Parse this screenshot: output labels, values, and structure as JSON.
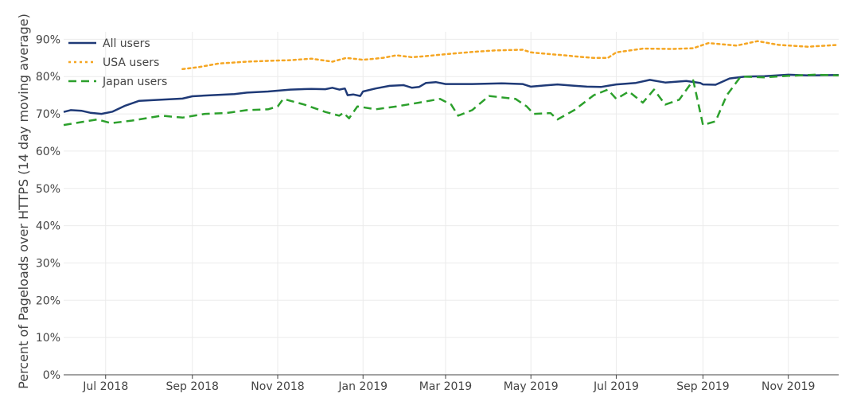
{
  "chart_data": {
    "type": "line",
    "title": "",
    "xlabel": "",
    "ylabel": "Percent of Pageloads over HTTPS (14 day moving average)",
    "x_ticks": [
      {
        "label": "Jul 2018",
        "date": "2018-07-01"
      },
      {
        "label": "Sep 2018",
        "date": "2018-09-01"
      },
      {
        "label": "Nov 2018",
        "date": "2018-11-01"
      },
      {
        "label": "Jan 2019",
        "date": "2019-01-01"
      },
      {
        "label": "Mar 2019",
        "date": "2019-03-01"
      },
      {
        "label": "May 2019",
        "date": "2019-05-01"
      },
      {
        "label": "Jul 2019",
        "date": "2019-07-01"
      },
      {
        "label": "Sep 2019",
        "date": "2019-09-01"
      },
      {
        "label": "Nov 2019",
        "date": "2019-11-01"
      }
    ],
    "xlim": [
      "2018-06-01",
      "2019-12-07"
    ],
    "y_ticks": [
      "0%",
      "10%",
      "20%",
      "30%",
      "40%",
      "50%",
      "60%",
      "70%",
      "80%",
      "90%"
    ],
    "ylim": [
      0,
      92
    ],
    "grid": true,
    "legend_position": "top-left",
    "series": [
      {
        "name": "All users",
        "color": "#1f3a77",
        "style": "solid",
        "points": [
          [
            "2018-06-01",
            70.5
          ],
          [
            "2018-06-06",
            71.0
          ],
          [
            "2018-06-14",
            70.8
          ],
          [
            "2018-06-20",
            70.3
          ],
          [
            "2018-06-28",
            70.0
          ],
          [
            "2018-07-06",
            70.6
          ],
          [
            "2018-07-15",
            72.2
          ],
          [
            "2018-07-25",
            73.5
          ],
          [
            "2018-08-10",
            73.8
          ],
          [
            "2018-08-25",
            74.1
          ],
          [
            "2018-09-01",
            74.7
          ],
          [
            "2018-09-15",
            75.0
          ],
          [
            "2018-10-01",
            75.3
          ],
          [
            "2018-10-10",
            75.7
          ],
          [
            "2018-10-25",
            76.0
          ],
          [
            "2018-11-10",
            76.5
          ],
          [
            "2018-11-25",
            76.7
          ],
          [
            "2018-12-05",
            76.6
          ],
          [
            "2018-12-10",
            77.0
          ],
          [
            "2018-12-15",
            76.5
          ],
          [
            "2018-12-19",
            76.8
          ],
          [
            "2018-12-21",
            75.0
          ],
          [
            "2018-12-25",
            75.2
          ],
          [
            "2018-12-30",
            74.8
          ],
          [
            "2019-01-01",
            76.0
          ],
          [
            "2019-01-10",
            76.8
          ],
          [
            "2019-01-20",
            77.5
          ],
          [
            "2019-01-30",
            77.7
          ],
          [
            "2019-02-05",
            77.0
          ],
          [
            "2019-02-10",
            77.2
          ],
          [
            "2019-02-15",
            78.3
          ],
          [
            "2019-02-22",
            78.5
          ],
          [
            "2019-03-01",
            78.0
          ],
          [
            "2019-03-20",
            78.0
          ],
          [
            "2019-04-10",
            78.2
          ],
          [
            "2019-04-25",
            78.0
          ],
          [
            "2019-05-01",
            77.3
          ],
          [
            "2019-05-10",
            77.6
          ],
          [
            "2019-05-20",
            77.9
          ],
          [
            "2019-05-30",
            77.6
          ],
          [
            "2019-06-10",
            77.3
          ],
          [
            "2019-06-20",
            77.2
          ],
          [
            "2019-07-01",
            77.9
          ],
          [
            "2019-07-15",
            78.3
          ],
          [
            "2019-07-25",
            79.1
          ],
          [
            "2019-08-05",
            78.4
          ],
          [
            "2019-08-20",
            78.8
          ],
          [
            "2019-08-30",
            78.3
          ],
          [
            "2019-09-01",
            77.9
          ],
          [
            "2019-09-10",
            77.8
          ],
          [
            "2019-09-20",
            79.5
          ],
          [
            "2019-10-01",
            80.0
          ],
          [
            "2019-10-15",
            80.1
          ],
          [
            "2019-11-01",
            80.5
          ],
          [
            "2019-11-15",
            80.3
          ],
          [
            "2019-12-07",
            80.4
          ]
        ]
      },
      {
        "name": "USA users",
        "color": "#f5a623",
        "style": "dotted",
        "points": [
          [
            "2018-08-25",
            82.0
          ],
          [
            "2018-09-05",
            82.5
          ],
          [
            "2018-09-20",
            83.5
          ],
          [
            "2018-10-10",
            84.0
          ],
          [
            "2018-10-25",
            84.2
          ],
          [
            "2018-11-10",
            84.4
          ],
          [
            "2018-11-25",
            84.8
          ],
          [
            "2018-12-10",
            84.0
          ],
          [
            "2018-12-20",
            85.0
          ],
          [
            "2019-01-01",
            84.5
          ],
          [
            "2019-01-15",
            85.0
          ],
          [
            "2019-01-25",
            85.7
          ],
          [
            "2019-02-05",
            85.2
          ],
          [
            "2019-02-15",
            85.5
          ],
          [
            "2019-03-01",
            86.0
          ],
          [
            "2019-03-20",
            86.6
          ],
          [
            "2019-04-05",
            87.0
          ],
          [
            "2019-04-25",
            87.2
          ],
          [
            "2019-05-01",
            86.5
          ],
          [
            "2019-05-15",
            86.0
          ],
          [
            "2019-05-25",
            85.7
          ],
          [
            "2019-06-05",
            85.3
          ],
          [
            "2019-06-15",
            85.0
          ],
          [
            "2019-06-25",
            85.0
          ],
          [
            "2019-07-01",
            86.5
          ],
          [
            "2019-07-20",
            87.5
          ],
          [
            "2019-08-10",
            87.4
          ],
          [
            "2019-08-25",
            87.6
          ],
          [
            "2019-09-05",
            89.0
          ],
          [
            "2019-09-25",
            88.3
          ],
          [
            "2019-10-10",
            89.5
          ],
          [
            "2019-10-25",
            88.5
          ],
          [
            "2019-11-15",
            88.0
          ],
          [
            "2019-12-07",
            88.5
          ]
        ]
      },
      {
        "name": "Japan users",
        "color": "#2ca02c",
        "style": "dashed",
        "points": [
          [
            "2018-06-01",
            67.0
          ],
          [
            "2018-06-25",
            68.5
          ],
          [
            "2018-07-05",
            67.5
          ],
          [
            "2018-07-20",
            68.2
          ],
          [
            "2018-08-10",
            69.5
          ],
          [
            "2018-08-25",
            69.0
          ],
          [
            "2018-09-10",
            70.0
          ],
          [
            "2018-09-25",
            70.2
          ],
          [
            "2018-10-10",
            71.0
          ],
          [
            "2018-10-25",
            71.2
          ],
          [
            "2018-11-01",
            72.0
          ],
          [
            "2018-11-05",
            74.0
          ],
          [
            "2018-11-20",
            72.5
          ],
          [
            "2018-12-05",
            70.5
          ],
          [
            "2018-12-15",
            69.5
          ],
          [
            "2018-12-18",
            70.3
          ],
          [
            "2018-12-22",
            68.8
          ],
          [
            "2018-12-28",
            72.0
          ],
          [
            "2019-01-10",
            71.2
          ],
          [
            "2019-01-25",
            72.0
          ],
          [
            "2019-02-10",
            73.0
          ],
          [
            "2019-02-25",
            74.0
          ],
          [
            "2019-03-05",
            72.5
          ],
          [
            "2019-03-10",
            69.5
          ],
          [
            "2019-03-20",
            71.0
          ],
          [
            "2019-04-01",
            74.8
          ],
          [
            "2019-04-20",
            74.0
          ],
          [
            "2019-04-28",
            72.0
          ],
          [
            "2019-05-03",
            70.0
          ],
          [
            "2019-05-15",
            70.2
          ],
          [
            "2019-05-20",
            68.5
          ],
          [
            "2019-06-01",
            71.0
          ],
          [
            "2019-06-15",
            75.0
          ],
          [
            "2019-06-25",
            76.5
          ],
          [
            "2019-07-01",
            74.0
          ],
          [
            "2019-07-10",
            76.0
          ],
          [
            "2019-07-20",
            73.0
          ],
          [
            "2019-07-28",
            76.5
          ],
          [
            "2019-08-05",
            72.5
          ],
          [
            "2019-08-15",
            73.8
          ],
          [
            "2019-08-25",
            79.0
          ],
          [
            "2019-09-01",
            67.0
          ],
          [
            "2019-09-10",
            68.0
          ],
          [
            "2019-09-18",
            75.0
          ],
          [
            "2019-09-28",
            80.0
          ],
          [
            "2019-10-15",
            79.8
          ],
          [
            "2019-11-01",
            80.2
          ],
          [
            "2019-11-20",
            80.5
          ],
          [
            "2019-12-07",
            80.3
          ]
        ]
      }
    ]
  }
}
